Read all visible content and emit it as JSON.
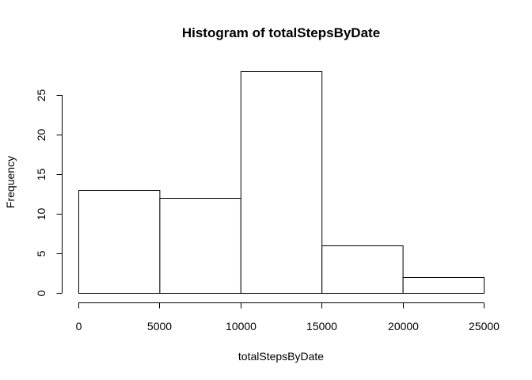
{
  "chart_data": {
    "type": "bar",
    "subtype": "histogram",
    "title": "Histogram of totalStepsByDate",
    "xlabel": "totalStepsByDate",
    "ylabel": "Frequency",
    "bins": [
      {
        "start": 0,
        "end": 5000,
        "count": 13
      },
      {
        "start": 5000,
        "end": 10000,
        "count": 12
      },
      {
        "start": 10000,
        "end": 15000,
        "count": 28
      },
      {
        "start": 15000,
        "end": 20000,
        "count": 6
      },
      {
        "start": 20000,
        "end": 25000,
        "count": 2
      }
    ],
    "xlim": [
      0,
      25000
    ],
    "ylim": [
      0,
      28
    ],
    "x_ticks": [
      0,
      5000,
      10000,
      15000,
      20000,
      25000
    ],
    "x_tick_labels": [
      "0",
      "5000",
      "10000",
      "15000",
      "20000",
      "25000"
    ],
    "y_ticks": [
      0,
      5,
      10,
      15,
      20,
      25
    ],
    "y_tick_labels": [
      "0",
      "5",
      "10",
      "15",
      "20",
      "25"
    ],
    "grid": false,
    "legend": "none",
    "colors": {
      "bar_fill": "#ffffff",
      "bar_stroke": "#000000"
    }
  }
}
